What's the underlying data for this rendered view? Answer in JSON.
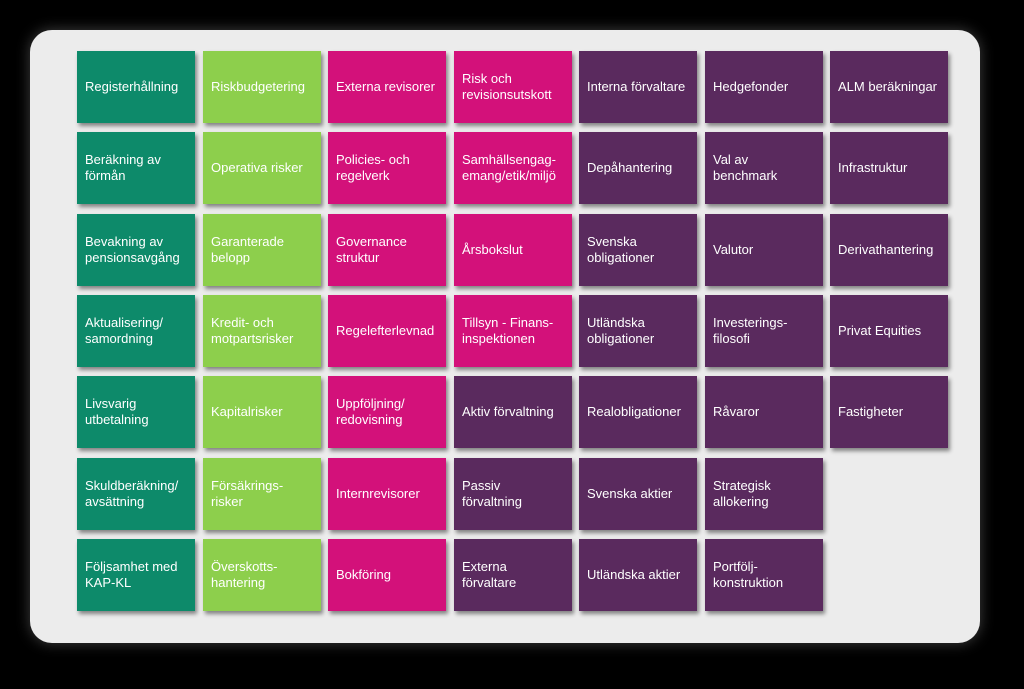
{
  "colors": {
    "green": "#0d8a6a",
    "lime": "#8dcf4c",
    "magenta": "#d3117a",
    "purple": "#5a2a5e"
  },
  "columns": [
    {
      "color": "green",
      "items": [
        "Registerhållning",
        "Beräkning av\nförmån",
        "Bevakning av\npensionsavgång",
        "Aktualisering/\nsamordning",
        "Livsvarig\nutbetalning",
        "Skuldberäkning/\navsättning",
        "Följsamhet med\nKAP-KL"
      ]
    },
    {
      "color": "lime",
      "items": [
        "Riskbudgetering",
        "Operativa risker",
        "Garanterade\nbelopp",
        "Kredit- och\nmotpartsrisker",
        "Kapitalrisker",
        "Försäkrings-\nrisker",
        "Överskotts-\nhantering"
      ]
    },
    {
      "color": "magenta",
      "items": [
        "Externa revisorer",
        "Policies- och\nregelverk",
        "Governance\nstruktur",
        "Regelefterlevnad",
        "Uppföljning/\nredovisning",
        "Internrevisorer",
        "Bokföring"
      ]
    },
    {
      "color": "mixed",
      "items": [
        "Risk och\nrevisionsutskott",
        "Samhällsengag-\nemang/etik/miljö",
        "Årsbokslut",
        "Tillsyn - Finans-\ninspektionen",
        "Aktiv förvaltning",
        "Passiv\nförvaltning",
        "Externa\nförvaltare"
      ],
      "item_colors": [
        "magenta",
        "magenta",
        "magenta",
        "magenta",
        "purple",
        "purple",
        "purple"
      ]
    },
    {
      "color": "purple",
      "items": [
        "Interna förvaltare",
        "Depåhantering",
        "Svenska\nobligationer",
        "Utländska\nobligationer",
        "Realobligationer",
        "Svenska aktier",
        "Utländska aktier"
      ]
    },
    {
      "color": "purple",
      "items": [
        "Hedgefonder",
        "Val av\nbenchmark",
        "Valutor",
        "Investerings-\nfilosofi",
        "Råvaror",
        "Strategisk\nallokering",
        "Portfölj-\nkonstruktion"
      ]
    },
    {
      "color": "purple",
      "items": [
        "ALM beräkningar",
        "Infrastruktur",
        "Derivathantering",
        "Privat Equities",
        "Fastigheter"
      ]
    }
  ]
}
